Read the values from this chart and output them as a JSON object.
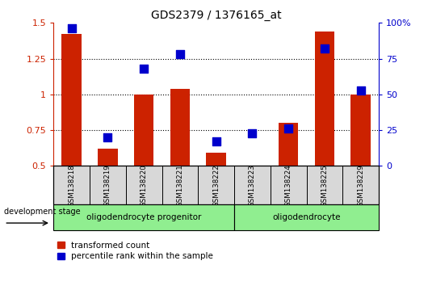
{
  "title": "GDS2379 / 1376165_at",
  "samples": [
    "GSM138218",
    "GSM138219",
    "GSM138220",
    "GSM138221",
    "GSM138222",
    "GSM138223",
    "GSM138224",
    "GSM138225",
    "GSM138229"
  ],
  "red_values": [
    1.42,
    0.62,
    1.0,
    1.04,
    0.59,
    0.5,
    0.8,
    1.44,
    1.0
  ],
  "blue_values_pct": [
    96,
    20,
    68,
    78,
    17,
    23,
    26,
    82,
    53
  ],
  "ylim_left": [
    0.5,
    1.5
  ],
  "ylim_right": [
    0,
    100
  ],
  "yticks_left": [
    0.5,
    0.75,
    1.0,
    1.25,
    1.5
  ],
  "yticks_right": [
    0,
    25,
    50,
    75,
    100
  ],
  "ytick_labels_left": [
    "0.5",
    "0.75",
    "1",
    "1.25",
    "1.5"
  ],
  "ytick_labels_right": [
    "0",
    "25",
    "50",
    "75",
    "100%"
  ],
  "bar_color": "#CC2200",
  "dot_color": "#0000CC",
  "bar_width": 0.55,
  "dot_size": 45,
  "grid_color": "black",
  "grid_style": "dotted",
  "grid_linewidth": 0.8,
  "left_axis_color": "#CC2200",
  "right_axis_color": "#0000CC",
  "legend_red_label": "transformed count",
  "legend_blue_label": "percentile rank within the sample",
  "dev_stage_label": "development stage",
  "sample_bg_color": "#d8d8d8",
  "group1_label": "oligodendrocyte progenitor",
  "group2_label": "oligodendrocyte",
  "group_color": "#90EE90"
}
